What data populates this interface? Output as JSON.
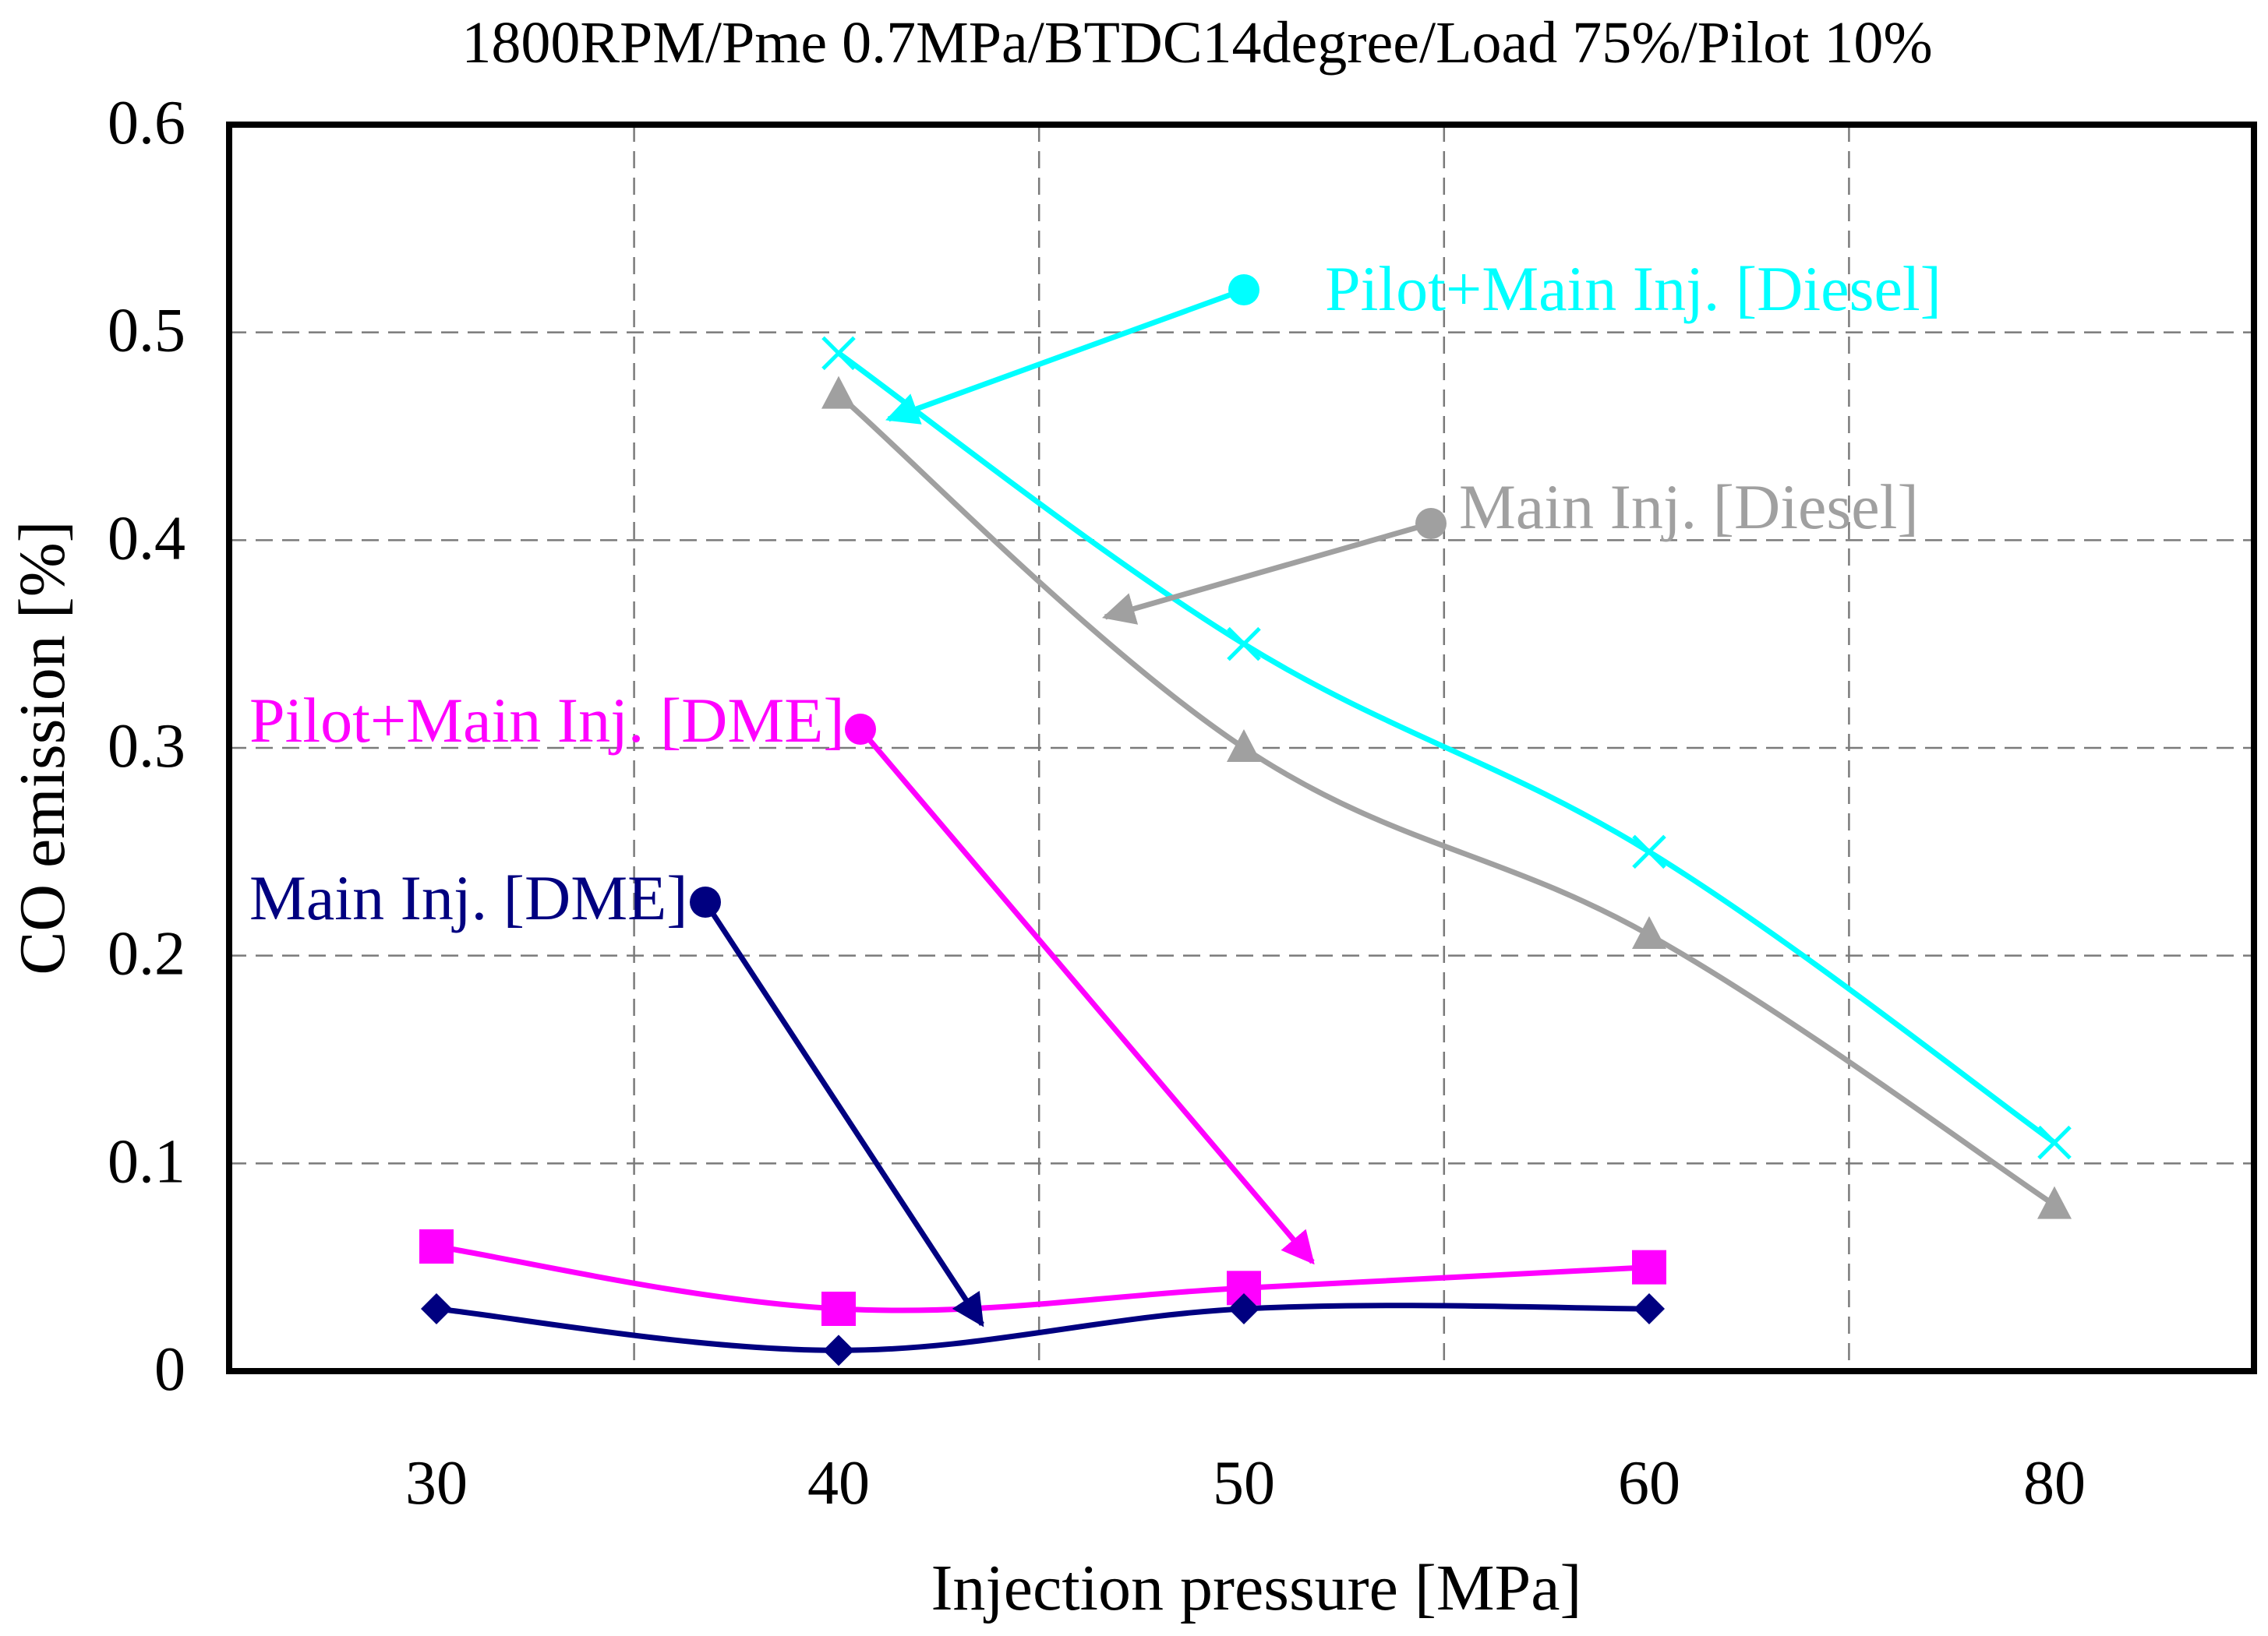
{
  "chart_data": {
    "type": "line",
    "title": "1800RPM/Pme 0.7MPa/BTDC14degree/Load 75%/Pilot 10%",
    "xlabel": "Injection pressure [MPa]",
    "ylabel": "CO emission [%]",
    "categories": [
      "30",
      "40",
      "50",
      "60",
      "80"
    ],
    "ylim": [
      0,
      0.6
    ],
    "yticks": [
      "0",
      "0.1",
      "0.2",
      "0.3",
      "0.4",
      "0.5",
      "0.6"
    ],
    "grid": true,
    "series": [
      {
        "name": "Pilot+Main Inj. [Diesel]",
        "color": "#00ffff",
        "marker": "x",
        "values": [
          null,
          0.49,
          0.35,
          0.25,
          0.11
        ]
      },
      {
        "name": "Main Inj. [Diesel]",
        "color": "#a0a0a0",
        "marker": "triangle",
        "values": [
          null,
          0.47,
          0.3,
          0.21,
          0.08
        ]
      },
      {
        "name": "Pilot+Main Inj. [DME]",
        "color": "#ff00ff",
        "marker": "square",
        "values": [
          0.06,
          0.03,
          0.04,
          0.05,
          null
        ]
      },
      {
        "name": "Main Inj. [DME]",
        "color": "#000080",
        "marker": "diamond",
        "values": [
          0.03,
          0.01,
          0.03,
          0.03,
          null
        ]
      }
    ]
  }
}
